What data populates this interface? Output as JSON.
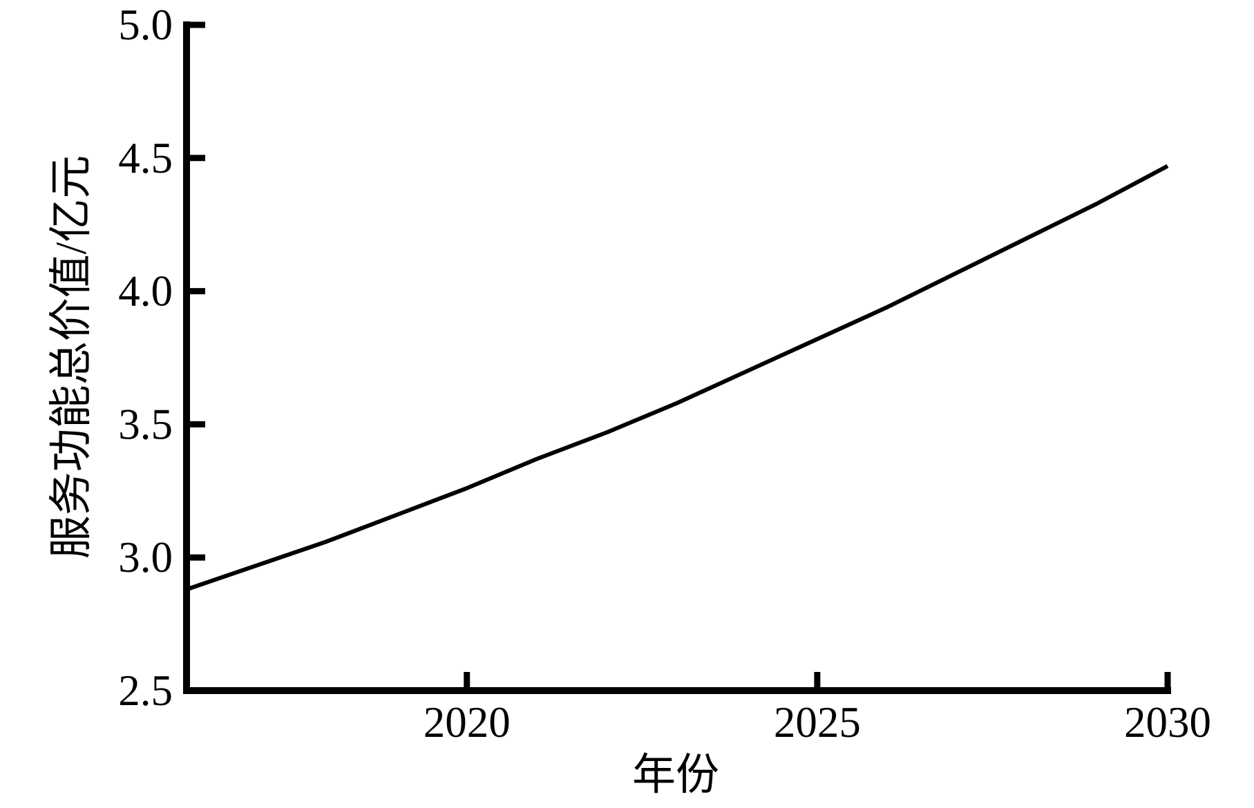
{
  "page": {
    "background": "#ffffff",
    "foreground": "#000000"
  },
  "chart_data": {
    "type": "line",
    "title": "",
    "xlabel": "年份",
    "ylabel": "服务功能总价值/亿元",
    "x": [
      2016,
      2017,
      2018,
      2019,
      2020,
      2021,
      2022,
      2023,
      2024,
      2025,
      2026,
      2027,
      2028,
      2029,
      2030
    ],
    "values": [
      2.88,
      2.97,
      3.06,
      3.16,
      3.26,
      3.37,
      3.47,
      3.58,
      3.7,
      3.82,
      3.94,
      4.07,
      4.2,
      4.33,
      4.47
    ],
    "series_name": "服务功能总价值",
    "xlim": [
      2016,
      2030
    ],
    "ylim": [
      2.5,
      5.0
    ],
    "xticks": [
      2020,
      2025,
      2030
    ],
    "yticks": [
      2.5,
      3.0,
      3.5,
      4.0,
      4.5,
      5.0
    ],
    "ytick_labels": [
      "2.5",
      "3.0",
      "3.5",
      "4.0",
      "4.5",
      "5.0"
    ],
    "grid": false,
    "legend": false,
    "line_color": "#000000",
    "axis_color": "#000000"
  }
}
